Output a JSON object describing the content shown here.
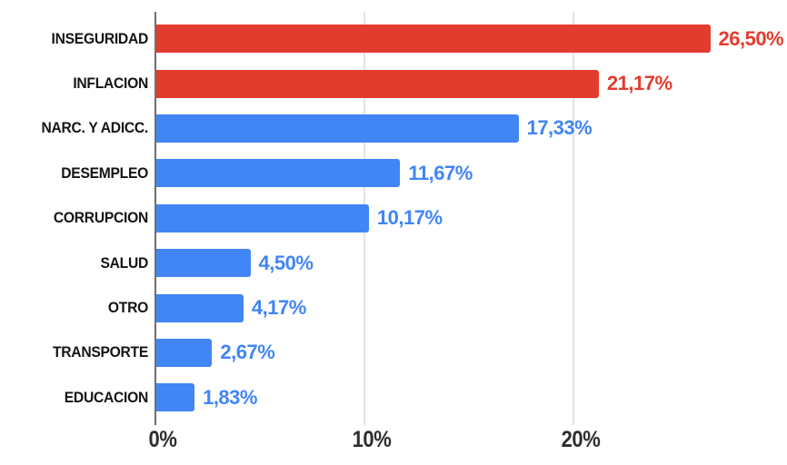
{
  "chart_data": {
    "type": "bar",
    "orientation": "horizontal",
    "title": "",
    "xlabel": "",
    "ylabel": "",
    "categories": [
      "INSEGURIDAD",
      "INFLACION",
      "NARC. Y ADICC.",
      "DESEMPLEO",
      "CORRUPCION",
      "SALUD",
      "OTRO",
      "TRANSPORTE",
      "EDUCACION"
    ],
    "values": [
      26.5,
      21.17,
      17.33,
      11.67,
      10.17,
      4.5,
      4.17,
      2.67,
      1.83
    ],
    "value_labels": [
      "26,50%",
      "21,17%",
      "17,33%",
      "11,67%",
      "10,17%",
      "4,50%",
      "4,17%",
      "2,67%",
      "1,83%"
    ],
    "bar_colors": [
      "#e23c2e",
      "#e23c2e",
      "#4285f4",
      "#4285f4",
      "#4285f4",
      "#4285f4",
      "#4285f4",
      "#4285f4",
      "#4285f4"
    ],
    "x_ticks": [
      "0%",
      "10%",
      "20%"
    ],
    "x_tick_values": [
      0,
      10,
      20
    ],
    "xlim": [
      0,
      30.2
    ],
    "grid": "vertical-light-gridlines",
    "legend": "none",
    "colors": {
      "red": "#e23c2e",
      "blue": "#4285f4",
      "category_text": "#141414",
      "tick_text": "#2e2e2e",
      "axis_line": "#6f6f6f",
      "gridline": "#e4e4e4",
      "background": "#ffffff"
    }
  }
}
